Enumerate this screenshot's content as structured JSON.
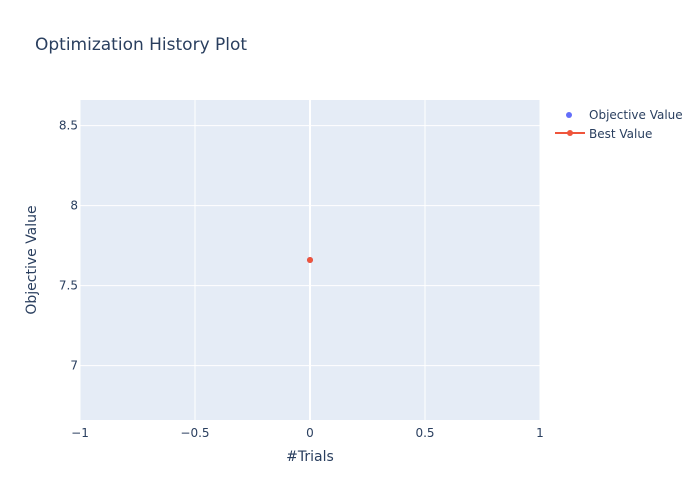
{
  "chart_data": {
    "type": "scatter",
    "title": "Optimization History Plot",
    "xlabel": "#Trials",
    "ylabel": "Objective Value",
    "xlim": [
      -1,
      1
    ],
    "ylim": [
      6.66,
      8.66
    ],
    "x_ticks": [
      -1,
      -0.5,
      0,
      0.5,
      1
    ],
    "x_tick_labels": [
      "−1",
      "−0.5",
      "0",
      "0.5",
      "1"
    ],
    "y_ticks": [
      7,
      7.5,
      8,
      8.5
    ],
    "y_tick_labels": [
      "7",
      "7.5",
      "8",
      "8.5"
    ],
    "grid": true,
    "legend_position": "top-right",
    "series": [
      {
        "name": "Objective Value",
        "mode": "markers",
        "color": "#636efa",
        "x": [
          0
        ],
        "y": [
          7.66
        ]
      },
      {
        "name": "Best Value",
        "mode": "lines+markers",
        "color": "#ef553b",
        "x": [
          0
        ],
        "y": [
          7.66
        ]
      }
    ]
  },
  "colors": {
    "plot_background": "#e5ecf6",
    "grid": "#ffffff",
    "text": "#2a3f5f"
  }
}
